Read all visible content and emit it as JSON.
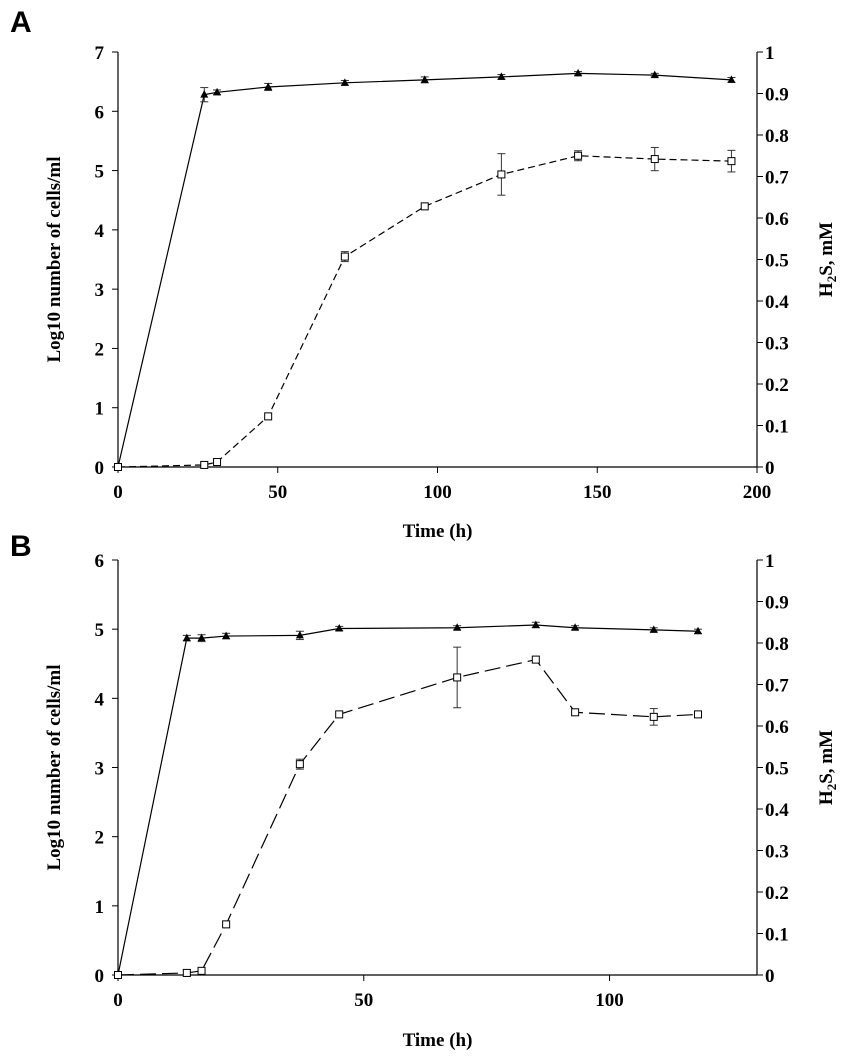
{
  "chart_data": [
    {
      "type": "line",
      "panel_label": "A",
      "xlabel": "Time (h)",
      "ylabel_left": "Log10 number of cells/ml",
      "ylabel_right_main": "H",
      "ylabel_right_sub": "2",
      "ylabel_right_rest": "S, mM",
      "xlim": [
        0,
        200
      ],
      "x_ticks": [
        0,
        50,
        100,
        150,
        200
      ],
      "ylim_left": [
        0,
        7
      ],
      "y_ticks_left": [
        0,
        1,
        2,
        3,
        4,
        5,
        6,
        7
      ],
      "ylim_right": [
        0,
        1
      ],
      "y_ticks_right": [
        "0",
        "0.1",
        "0.2",
        "0.3",
        "0.4",
        "0.5",
        "0.6",
        "0.7",
        "0.8",
        "0.9",
        "1"
      ],
      "series": [
        {
          "name": "Cells",
          "axis": "left",
          "marker": "triangle",
          "line": "solid",
          "x": [
            0,
            27,
            31,
            47,
            71,
            96,
            120,
            144,
            168,
            192
          ],
          "y": [
            0,
            6.28,
            6.32,
            6.41,
            6.48,
            6.53,
            6.58,
            6.64,
            6.61,
            6.53
          ],
          "err": [
            0,
            0.12,
            0.04,
            0.06,
            0.04,
            0.05,
            0.04,
            0.03,
            0.03,
            0.04
          ]
        },
        {
          "name": "H2S",
          "axis": "right",
          "marker": "open-square",
          "line": "dashed",
          "x": [
            0,
            27,
            31,
            47,
            71,
            96,
            120,
            144,
            168,
            192
          ],
          "y": [
            0,
            0.005,
            0.012,
            0.122,
            0.507,
            0.628,
            0.705,
            0.75,
            0.742,
            0.737
          ],
          "err": [
            0,
            0.005,
            0,
            0,
            0.012,
            0,
            0.05,
            0.012,
            0.028,
            0.026
          ]
        }
      ]
    },
    {
      "type": "line",
      "panel_label": "B",
      "xlabel": "Time (h)",
      "ylabel_left": "Log10 number of cells/ml",
      "ylabel_right_main": "H",
      "ylabel_right_sub": "2",
      "ylabel_right_rest": "S, mM",
      "xlim": [
        0,
        130
      ],
      "x_ticks": [
        0,
        50,
        100
      ],
      "ylim_left": [
        0,
        6
      ],
      "y_ticks_left": [
        0,
        1,
        2,
        3,
        4,
        5,
        6
      ],
      "ylim_right": [
        0,
        1
      ],
      "y_ticks_right": [
        "0",
        "0.1",
        "0.2",
        "0.3",
        "0.4",
        "0.5",
        "0.6",
        "0.7",
        "0.8",
        "0.9",
        "1"
      ],
      "series": [
        {
          "name": "Cells",
          "axis": "left",
          "marker": "triangle",
          "line": "solid",
          "x": [
            0,
            14,
            17,
            22,
            37,
            45,
            69,
            85,
            93,
            109,
            118
          ],
          "y": [
            0,
            4.87,
            4.87,
            4.9,
            4.91,
            5.01,
            5.02,
            5.06,
            5.02,
            4.99,
            4.97
          ],
          "err": [
            0,
            0.04,
            0.05,
            0.04,
            0.06,
            0.03,
            0.03,
            0.04,
            0.03,
            0.03,
            0.03
          ]
        },
        {
          "name": "H2S",
          "axis": "right",
          "marker": "open-square",
          "line": "long-dashed",
          "x": [
            0,
            14,
            17,
            22,
            37,
            45,
            69,
            85,
            93,
            109,
            118
          ],
          "y": [
            0,
            0.005,
            0.01,
            0.122,
            0.508,
            0.628,
            0.717,
            0.76,
            0.633,
            0.622,
            0.628
          ],
          "err": [
            0,
            0.008,
            0,
            0,
            0.012,
            0,
            0.073,
            0,
            0,
            0.02,
            0
          ]
        }
      ]
    }
  ]
}
